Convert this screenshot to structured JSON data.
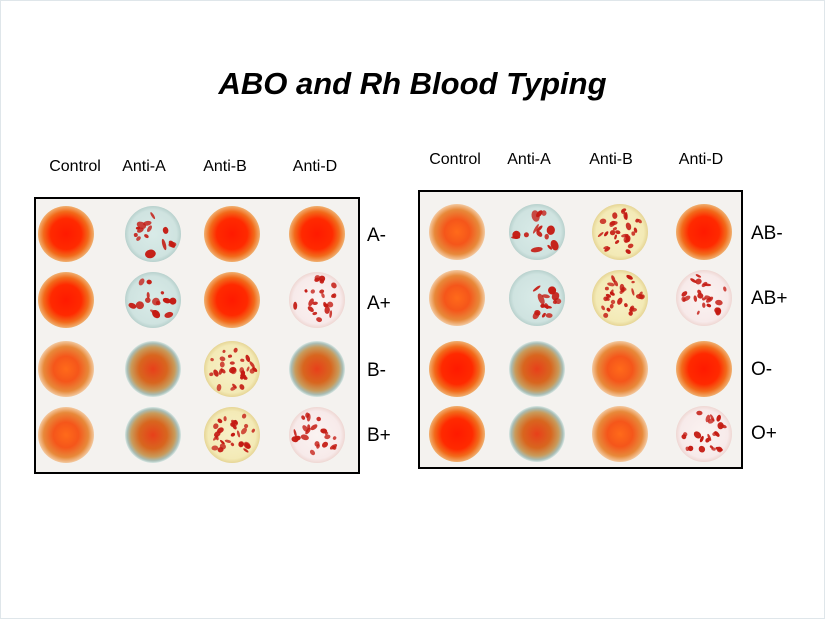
{
  "title": "ABO and Rh Blood Typing",
  "left_panel": {
    "columns": [
      "Control",
      "Anti-A",
      "Anti-B",
      "Anti-D"
    ],
    "rows": [
      {
        "label": "A-",
        "wells": [
          "smooth-red",
          "agglutinated-blue",
          "smooth-red",
          "smooth-red"
        ]
      },
      {
        "label": "A+",
        "wells": [
          "smooth-red",
          "agglutinated-blue",
          "smooth-red",
          "agglutinated-pink"
        ]
      },
      {
        "label": "B-",
        "wells": [
          "smooth-orange",
          "smooth-blue-rim",
          "agglutinated-yellow",
          "smooth-blue-rim"
        ]
      },
      {
        "label": "B+",
        "wells": [
          "smooth-orange",
          "smooth-blue-rim",
          "agglutinated-yellow",
          "agglutinated-pink"
        ]
      }
    ]
  },
  "right_panel": {
    "columns": [
      "Control",
      "Anti-A",
      "Anti-B",
      "Anti-D"
    ],
    "rows": [
      {
        "label": "AB-",
        "wells": [
          "smooth-orange",
          "agglutinated-blue",
          "agglutinated-yellow",
          "smooth-red"
        ]
      },
      {
        "label": "AB+",
        "wells": [
          "smooth-orange",
          "agglutinated-blue",
          "agglutinated-yellow",
          "agglutinated-pink"
        ]
      },
      {
        "label": "O-",
        "wells": [
          "smooth-red",
          "smooth-blue-rim",
          "smooth-orange",
          "smooth-red"
        ]
      },
      {
        "label": "O+",
        "wells": [
          "smooth-red",
          "smooth-blue-rim",
          "smooth-orange",
          "agglutinated-pink"
        ]
      }
    ]
  },
  "colors": {
    "red_center": "#ff1a00",
    "orange_rim": "#e8893a",
    "blue_base": "#cfe3e0",
    "yellow_base": "#f3eab6",
    "pink_base": "#f7eaea",
    "clump": "#c41a12"
  }
}
